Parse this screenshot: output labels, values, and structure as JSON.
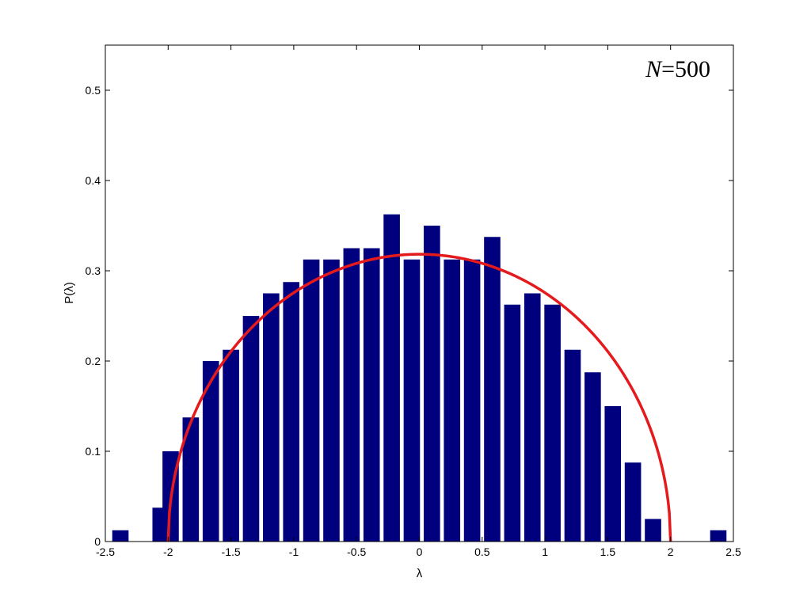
{
  "chart_data": {
    "type": "bar",
    "xlabel": "λ",
    "ylabel": "P(λ)",
    "annotation": {
      "italic": "N",
      "rest": "=500"
    },
    "xlim": [
      -2.5,
      2.5
    ],
    "ylim": [
      0,
      0.55
    ],
    "xticks": [
      -2.5,
      -2,
      -1.5,
      -1,
      -0.5,
      0,
      0.5,
      1,
      1.5,
      2,
      2.5
    ],
    "xtick_labels": [
      "-2.5",
      "-2",
      "-1.5",
      "-1",
      "-0.5",
      "0",
      "0.5",
      "1",
      "1.5",
      "2",
      "2.5"
    ],
    "yticks": [
      0,
      0.1,
      0.2,
      0.3,
      0.4,
      0.5
    ],
    "ytick_labels": [
      "0",
      "0.1",
      "0.2",
      "0.3",
      "0.4",
      "0.5"
    ],
    "bar_width": 0.13,
    "bar_color": "#00007f",
    "bars": {
      "x": [
        -2.38,
        -2.06,
        -1.98,
        -1.82,
        -1.66,
        -1.5,
        -1.34,
        -1.18,
        -1.02,
        -0.86,
        -0.7,
        -0.54,
        -0.38,
        -0.22,
        -0.06,
        0.1,
        0.26,
        0.42,
        0.58,
        0.74,
        0.9,
        1.06,
        1.22,
        1.38,
        1.54,
        1.7,
        1.86,
        2.38
      ],
      "y": [
        0.0125,
        0.0375,
        0.1,
        0.1375,
        0.2,
        0.2125,
        0.25,
        0.275,
        0.2875,
        0.3125,
        0.3125,
        0.325,
        0.325,
        0.3625,
        0.3125,
        0.35,
        0.3125,
        0.3125,
        0.3375,
        0.2625,
        0.275,
        0.2625,
        0.2125,
        0.1875,
        0.15,
        0.0875,
        0.025,
        0.0125
      ]
    },
    "curve": {
      "name": "semicircle",
      "color": "#e41a1c",
      "formula": "sqrt(4 - x^2) / (2*pi)",
      "domain": [
        -2,
        2
      ]
    },
    "grid": false,
    "legend": "none"
  }
}
